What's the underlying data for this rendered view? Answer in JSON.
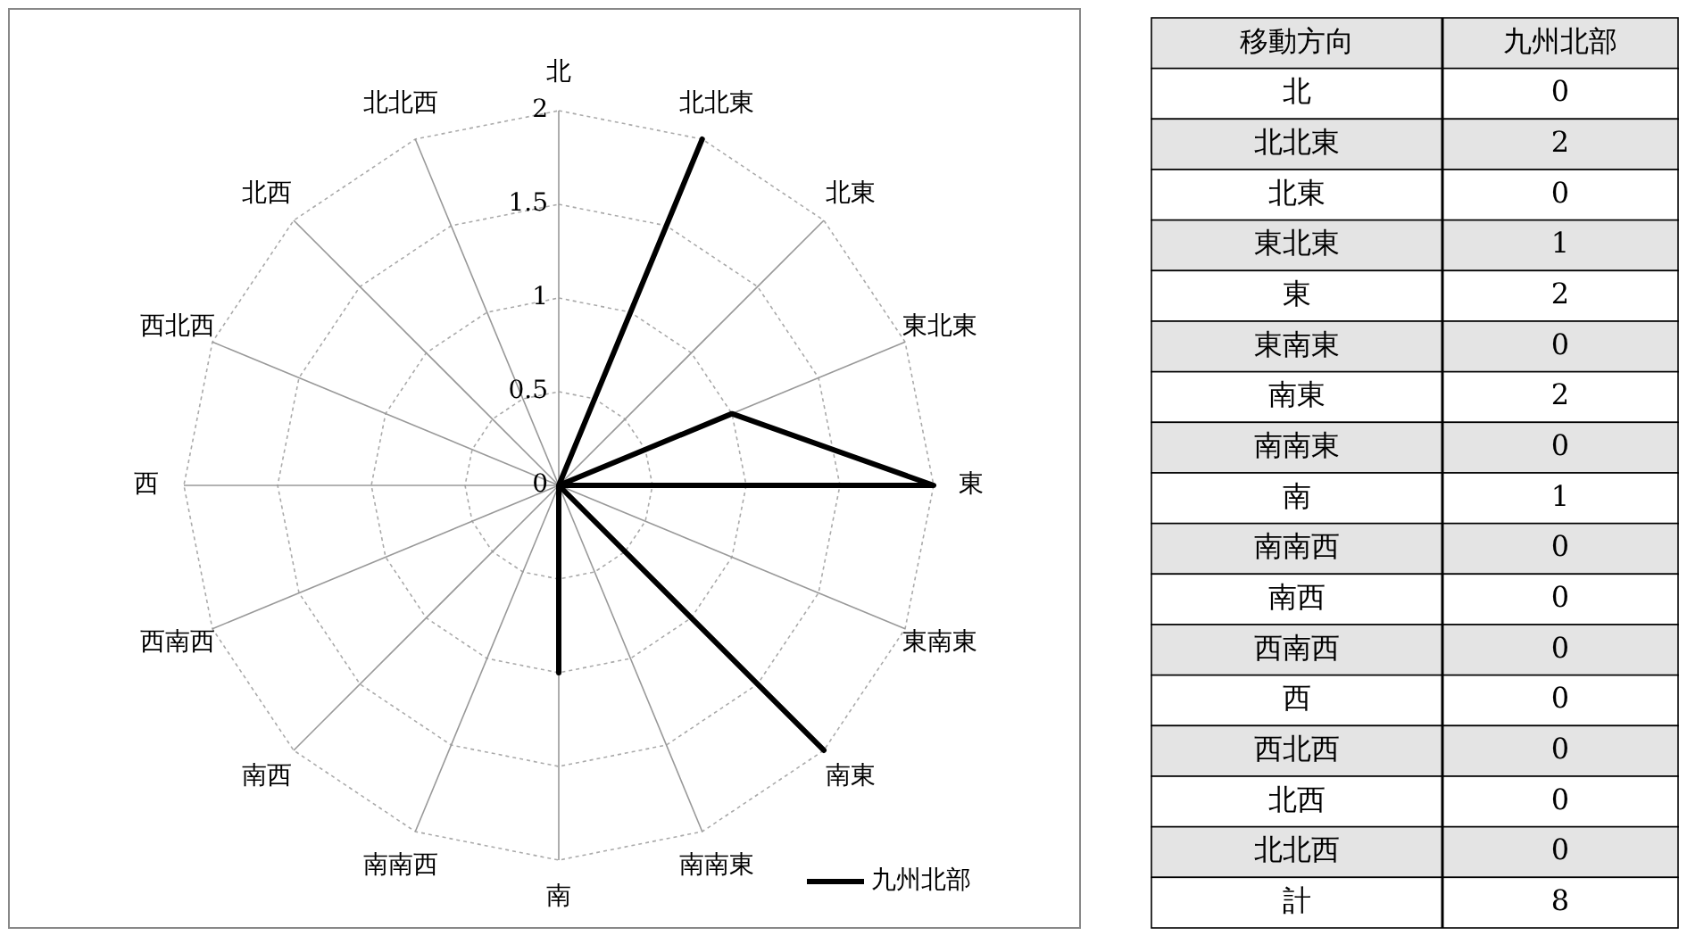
{
  "chart_data": [
    {
      "type": "radar",
      "categories": [
        "北",
        "北北東",
        "北東",
        "東北東",
        "東",
        "東南東",
        "南東",
        "南南東",
        "南",
        "南南西",
        "南西",
        "西南西",
        "西",
        "西北西",
        "北西",
        "北北西"
      ],
      "series": [
        {
          "name": "九州北部",
          "color": "#000000",
          "values": [
            0,
            2,
            0,
            1,
            2,
            0,
            2,
            0,
            1,
            0,
            0,
            0,
            0,
            0,
            0,
            0
          ]
        }
      ],
      "ylim": [
        0,
        2
      ],
      "yticks": [
        0,
        0.5,
        1,
        1.5,
        2
      ],
      "grid": true,
      "legend": "bottom right",
      "marker": "none",
      "line_style": "solid"
    },
    {
      "type": "other",
      "xlabel": "移動方向",
      "ylabel": "九州北部",
      "data_labels": true,
      "categories": [
        "北",
        "北北東",
        "北東",
        "東北東",
        "東",
        "東南東",
        "南東",
        "南南東",
        "南",
        "南南西",
        "南西",
        "西南西",
        "西",
        "西北西",
        "北西",
        "北北西",
        "計"
      ],
      "values": [
        0,
        2,
        0,
        1,
        2,
        0,
        2,
        0,
        1,
        0,
        0,
        0,
        0,
        0,
        0,
        0,
        8
      ]
    }
  ]
}
